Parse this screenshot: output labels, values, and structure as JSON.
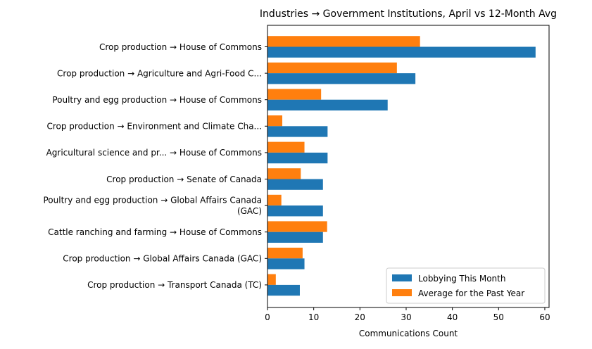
{
  "chart_data": {
    "type": "bar",
    "orientation": "horizontal",
    "title": "Industries → Government Institutions, April vs 12-Month Avg",
    "xlabel": "Communications Count",
    "ylabel": "",
    "xlim": [
      0,
      61
    ],
    "xticks": [
      "0",
      "10",
      "20",
      "30",
      "40",
      "50",
      "60"
    ],
    "grid": false,
    "legend_position": "lower-right",
    "categories": [
      "Crop production → House of Commons",
      "Crop production → Agriculture and Agri-Food C...",
      "Poultry and egg production → House of Commons",
      "Crop production → Environment and Climate Cha...",
      "Agricultural science and pr... → House of Commons",
      "Crop production → Senate of Canada",
      [
        "Poultry and egg production → Global Affairs Canada",
        "(GAC)"
      ],
      "Cattle ranching and farming → House of Commons",
      "Crop production → Global Affairs Canada (GAC)",
      "Crop production → Transport Canada (TC)"
    ],
    "series": [
      {
        "name": "Lobbying This Month",
        "color": "#1f77b4",
        "values": [
          58,
          32,
          26,
          13,
          13,
          12,
          12,
          12,
          8,
          7
        ]
      },
      {
        "name": "Average for the Past Year",
        "color": "#ff7f0e",
        "values": [
          33,
          28,
          11.6,
          3.2,
          8,
          7.2,
          3,
          12.9,
          7.6,
          1.8
        ]
      }
    ]
  }
}
